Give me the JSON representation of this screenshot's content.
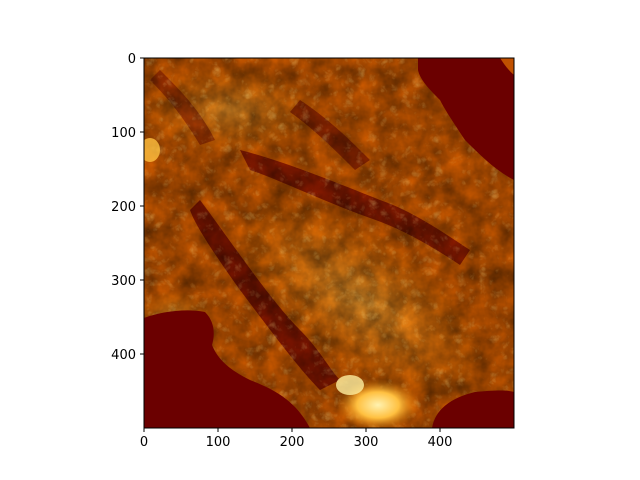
{
  "chart_data": {
    "type": "heatmap",
    "title": "",
    "xlabel": "",
    "ylabel": "",
    "xlim": [
      0,
      500
    ],
    "ylim": [
      500,
      0
    ],
    "x_ticks": [
      0,
      100,
      200,
      300,
      400
    ],
    "y_ticks": [
      0,
      100,
      200,
      300,
      400
    ],
    "colormap": "afmhot",
    "colorbar": false,
    "description_regions": [
      {
        "name": "upper-right-dark",
        "value_level": "low"
      },
      {
        "name": "lower-left-dark",
        "value_level": "low"
      },
      {
        "name": "bottom-right-dark",
        "value_level": "low"
      },
      {
        "name": "bottom-center-bright",
        "value_level": "high"
      }
    ]
  },
  "colors": {
    "dark": "#6b0000",
    "mid": "#c04a00",
    "orange": "#e07800",
    "bright": "#ffd060"
  }
}
